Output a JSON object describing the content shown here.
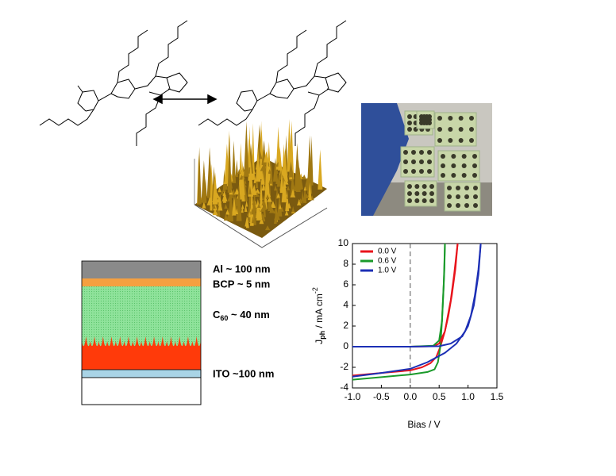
{
  "chart_data": {
    "type": "line",
    "xlabel": "Bias / V",
    "ylabel": [
      "J",
      "ph",
      " / mA cm",
      "-2"
    ],
    "xlim": [
      -1,
      1.5
    ],
    "xticks": [
      {
        "value": -1,
        "label": "-1.0"
      },
      -0.5,
      {
        "value": 0,
        "label": "0.0"
      },
      0.5,
      {
        "value": 1,
        "label": "1.0"
      },
      1.5
    ],
    "ylim": [
      -4,
      10
    ],
    "yticks": [
      -4,
      -2,
      0,
      2,
      4,
      6,
      8,
      10
    ],
    "reference_line": {
      "x": 0,
      "style": "dashed"
    },
    "legend": "upper left",
    "series": [
      {
        "name": "0.0 V",
        "color": "#e8141c",
        "x": [
          -1,
          -0.5,
          0,
          0.2,
          0.35,
          0.45,
          0.52,
          0.6,
          0.66,
          0.72,
          0.78,
          0.82
        ],
        "values": [
          -2.8,
          -2.55,
          -2.3,
          -2.0,
          -1.6,
          -1.0,
          0,
          1.5,
          3,
          5,
          7.5,
          10
        ]
      },
      {
        "name": "0.6 V",
        "color": "#1a9a2a",
        "x": [
          -1,
          -0.5,
          0,
          0.3,
          0.42,
          0.48,
          0.52,
          0.55,
          0.57,
          0.59,
          0.6
        ],
        "values": [
          -3.2,
          -2.95,
          -2.7,
          -2.45,
          -2.2,
          -1.5,
          0,
          2.5,
          5,
          7.5,
          10
        ]
      },
      {
        "name": "1.0 V",
        "color": "#1c2fb5",
        "x": [
          -1,
          -0.5,
          0,
          0.3,
          0.6,
          0.8,
          0.95,
          1.05,
          1.12,
          1.18,
          1.22
        ],
        "values": [
          -2.9,
          -2.55,
          -2.15,
          -1.5,
          -0.6,
          0.3,
          1.5,
          3,
          5,
          7.5,
          10
        ]
      },
      {
        "color": "#e8141c",
        "x": [
          -1,
          0,
          0.4,
          0.5,
          0.6,
          0.7,
          0.76,
          0.82
        ],
        "values": [
          0,
          0,
          0.05,
          0.3,
          1.5,
          4.5,
          7,
          10
        ]
      },
      {
        "color": "#1a9a2a",
        "x": [
          -1,
          0,
          0.4,
          0.5,
          0.55,
          0.58,
          0.6
        ],
        "values": [
          0,
          0,
          0.1,
          0.6,
          2.5,
          6,
          10
        ]
      },
      {
        "color": "#1c2fb5",
        "x": [
          -1,
          0,
          0.5,
          0.7,
          0.9,
          1.0,
          1.1,
          1.18,
          1.22
        ],
        "values": [
          0,
          0,
          0.05,
          0.3,
          1,
          2,
          4,
          7,
          10
        ]
      }
    ]
  },
  "device_stack": {
    "layers": [
      "Al ~ 100 nm",
      "BCP ~ 5 nm",
      [
        "C",
        "60",
        " ~ 40 nm"
      ],
      "ITO ~100 nm"
    ]
  }
}
